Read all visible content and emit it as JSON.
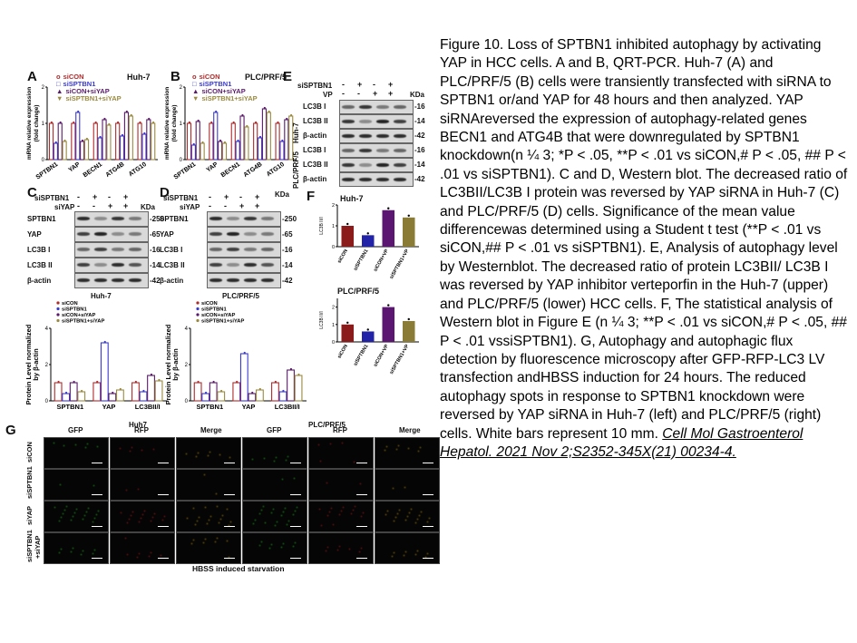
{
  "caption": {
    "text": "Figure 10. Loss of SPTBN1 inhibited autophagy by activating YAP in HCC cells. A and B, QRT-PCR. Huh-7 (A) and PLC/PRF/5 (B) cells were transiently transfected with siRNA to SPTBN1 or/and YAP for 48 hours and then analyzed. YAP siRNAreversed the expression of autophagy-related genes BECN1 and ATG4B that were downregulated by SPTBN1 knockdown(n ¼ 3; *P < .05, **P < .01 vs siCON,# P < .05, ## P < .01 vs siSPTBN1). C and D, Western blot. The decreased ratio of LC3BII/LC3B I protein was reversed by YAP siRNA in Huh-7 (C) and PLC/PRF/5 (D) cells. Significance of the mean value differencewas determined using a Student t test (**P < .01 vs siCON,## P < .01 vs siSPTBN1). E, Analysis of autophagy level by Westernblot. The decreased ratio of protein LC3BII/ LC3B I was reversed by YAP inhibitor verteporfin in the Huh-7 (upper) and PLC/PRF/5 (lower) HCC cells. F, The statistical analysis of Western blot in Figure E (n ¼ 3; **P < .01 vs siCON,# P < .05, ## P < .01 vssiSPTBN1). G, Autophagy and autophagic flux detection by fluorescence microscopy after GFP-RFP-LC3 LV transfection andHBSS induction for 24 hours. The reduced autophagy spots in response to SPTBN1 knockdown were reversed by YAP siRNA in Huh-7 (left) and PLC/PRF/5 (right) cells. White bars represent 10 mm.",
    "citation": "Cell Mol Gastroenterol Hepatol. 2021 Nov 2;S2352-345X(21) 00234-4."
  },
  "panels": {
    "A": {
      "label": "A",
      "cell": "Huh-7",
      "ylabel": "mRNA relative expression\n(fold change)"
    },
    "B": {
      "label": "B",
      "cell": "PLC/PRF/5",
      "ylabel": "mRNA relative expression\n(fold change)"
    },
    "C": {
      "label": "C",
      "cell": "Huh-7"
    },
    "D": {
      "label": "D",
      "cell": "PLC/PRF/5"
    },
    "E": {
      "label": "E",
      "cell_top": "Huh-7",
      "cell_bottom": "PLC/PRF/5"
    },
    "F": {
      "label": "F",
      "cell_top": "Huh-7",
      "cell_bottom": "PLC/PRF/5",
      "ylabel": "LC3B II/I"
    },
    "G": {
      "label": "G",
      "cell_left": "Huh7",
      "cell_right": "PLC/PRF/5",
      "footer": "HBSS induced starvation"
    }
  },
  "legend_si": [
    "siCON",
    "siSPTBN1",
    "siCON+siYAP",
    "siSPTBN1+siYAP"
  ],
  "genes": [
    "SPTBN1",
    "YAP",
    "BECN1",
    "ATG4B",
    "ATG10"
  ],
  "blot": {
    "row_sptbn1": "siSPTBN1",
    "row_siyap": "siYAP",
    "row_vp": "VP",
    "signs_c": [
      "-",
      "+",
      "-",
      "+"
    ],
    "signs_yap": [
      "-",
      "-",
      "+",
      "+"
    ],
    "kda": "KDa",
    "proteins_cd": [
      "SPTBN1",
      "YAP",
      "LC3B I",
      "LC3B II",
      "β-actin"
    ],
    "kda_cd": [
      "250",
      "65",
      "16",
      "14",
      "42"
    ],
    "proteins_e": [
      "LC3B I",
      "LC3B II",
      "β-actin",
      "LC3B I",
      "LC3B II",
      "β-actin"
    ],
    "kda_e": [
      "16",
      "14",
      "42",
      "16",
      "14",
      "42"
    ]
  },
  "quant": {
    "ylabel": "Protein Level normalized\nby β-actin",
    "categories": [
      "SPTBN1",
      "YAP",
      "LC3BII/I"
    ]
  },
  "micro": {
    "columns": [
      "GFP",
      "RFP",
      "Merge",
      "GFP",
      "RFP",
      "Merge"
    ],
    "rows": [
      "siCON",
      "siSPTBN1",
      "siYAP",
      "siSPTBN1\n+siYAP"
    ]
  },
  "chart_data": [
    {
      "type": "bar",
      "panel": "A",
      "categories": [
        "SPTBN1",
        "YAP",
        "BECN1",
        "ATG4B",
        "ATG10"
      ],
      "ylim": [
        0,
        2
      ],
      "series": [
        {
          "name": "siCON",
          "values": [
            1.0,
            1.0,
            1.0,
            1.0,
            1.0
          ]
        },
        {
          "name": "siSPTBN1",
          "values": [
            0.45,
            1.3,
            0.6,
            0.65,
            0.7
          ]
        },
        {
          "name": "siCON+siYAP",
          "values": [
            1.0,
            0.5,
            1.1,
            1.3,
            1.1
          ]
        },
        {
          "name": "siSPTBN1+siYAP",
          "values": [
            0.5,
            0.55,
            0.95,
            1.2,
            1.0
          ]
        }
      ]
    },
    {
      "type": "bar",
      "panel": "B",
      "categories": [
        "SPTBN1",
        "YAP",
        "BECN1",
        "ATG4B",
        "ATG10"
      ],
      "ylim": [
        0,
        2
      ],
      "series": [
        {
          "name": "siCON",
          "values": [
            1.0,
            1.0,
            1.0,
            1.0,
            1.0
          ]
        },
        {
          "name": "siSPTBN1",
          "values": [
            0.4,
            1.3,
            0.5,
            0.6,
            0.5
          ]
        },
        {
          "name": "siCON+siYAP",
          "values": [
            1.05,
            0.5,
            1.2,
            1.4,
            1.1
          ]
        },
        {
          "name": "siSPTBN1+siYAP",
          "values": [
            0.45,
            0.45,
            0.9,
            1.3,
            1.2
          ]
        }
      ]
    },
    {
      "type": "bar",
      "panel": "C-quant",
      "categories": [
        "SPTBN1",
        "YAP",
        "LC3BII/I"
      ],
      "ylim": [
        0,
        4
      ],
      "series": [
        {
          "name": "siCON",
          "values": [
            1.0,
            1.0,
            1.0
          ]
        },
        {
          "name": "siSPTBN1",
          "values": [
            0.4,
            3.2,
            0.5
          ]
        },
        {
          "name": "siCON+siYAP",
          "values": [
            1.0,
            0.4,
            1.4
          ]
        },
        {
          "name": "siSPTBN1+siYAP",
          "values": [
            0.5,
            0.6,
            1.1
          ]
        }
      ]
    },
    {
      "type": "bar",
      "panel": "D-quant",
      "categories": [
        "SPTBN1",
        "YAP",
        "LC3BII/I"
      ],
      "ylim": [
        0,
        4
      ],
      "series": [
        {
          "name": "siCON",
          "values": [
            1.0,
            1.0,
            1.0
          ]
        },
        {
          "name": "siSPTBN1",
          "values": [
            0.4,
            2.6,
            0.5
          ]
        },
        {
          "name": "siCON+siYAP",
          "values": [
            1.0,
            0.4,
            1.7
          ]
        },
        {
          "name": "siSPTBN1+siYAP",
          "values": [
            0.5,
            0.6,
            1.4
          ]
        }
      ]
    },
    {
      "type": "bar",
      "panel": "F-top",
      "categories": [
        "siCON",
        "siSPTBN1",
        "siCON+VP",
        "siSPTBN1+VP"
      ],
      "ylim": [
        0,
        2
      ],
      "values": [
        1.0,
        0.55,
        1.75,
        1.4
      ]
    },
    {
      "type": "bar",
      "panel": "F-bottom",
      "categories": [
        "siCON",
        "siSPTBN1",
        "siCON+VP",
        "siSPTBN1+VP"
      ],
      "ylim": [
        0,
        2.5
      ],
      "values": [
        1.0,
        0.6,
        2.0,
        1.2
      ]
    }
  ],
  "colors": {
    "siCON": "#b02a2a",
    "siSPTBN1": "#3a3ad0",
    "siCON+siYAP": "#5a1a6a",
    "siSPTBN1+siYAP": "#9a8a40"
  }
}
